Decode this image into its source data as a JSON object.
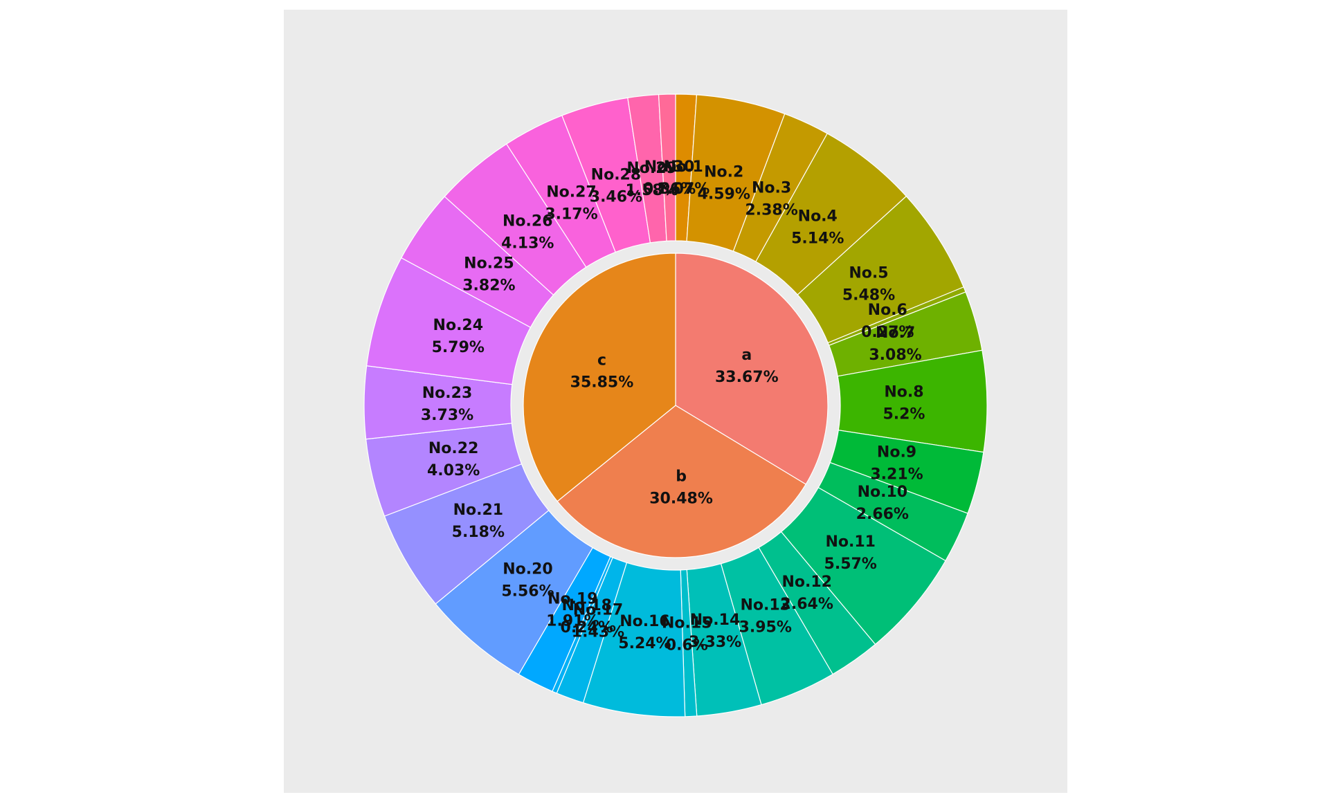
{
  "chart_data": {
    "type": "sunburst",
    "panel_background": "#EBEBEB",
    "segment_border": "#FFFFFF",
    "start": "12 o'clock, clockwise",
    "inner": [
      {
        "label": "a",
        "pct_label": "33.67%",
        "value": 33.67,
        "color": "#F37B70"
      },
      {
        "label": "b",
        "pct_label": "30.48%",
        "value": 30.48,
        "color": "#EF7F4E"
      },
      {
        "label": "c",
        "pct_label": "35.85%",
        "value": 35.85,
        "color": "#E6861A"
      }
    ],
    "outer": [
      {
        "label": "No.1",
        "pct_label": "1.07%",
        "value": 1.07,
        "color": "#DE8C00"
      },
      {
        "label": "No.2",
        "pct_label": "4.59%",
        "value": 4.59,
        "color": "#D39200"
      },
      {
        "label": "No.3",
        "pct_label": "2.38%",
        "value": 2.38,
        "color": "#C49A00"
      },
      {
        "label": "No.4",
        "pct_label": "5.14%",
        "value": 5.14,
        "color": "#B4A000"
      },
      {
        "label": "No.5",
        "pct_label": "5.48%",
        "value": 5.48,
        "color": "#A2A600"
      },
      {
        "label": "No.6",
        "pct_label": "0.27%",
        "value": 0.27,
        "color": "#8FAA00"
      },
      {
        "label": "No.7",
        "pct_label": "3.08%",
        "value": 3.08,
        "color": "#6EB100"
      },
      {
        "label": "No.8",
        "pct_label": "5.2%",
        "value": 5.2,
        "color": "#3CB500"
      },
      {
        "label": "No.9",
        "pct_label": "3.21%",
        "value": 3.21,
        "color": "#00BA38"
      },
      {
        "label": "No.10",
        "pct_label": "2.66%",
        "value": 2.66,
        "color": "#00BD5C"
      },
      {
        "label": "No.11",
        "pct_label": "5.57%",
        "value": 5.57,
        "color": "#00BF77"
      },
      {
        "label": "No.12",
        "pct_label": "2.64%",
        "value": 2.64,
        "color": "#00C08E"
      },
      {
        "label": "No.13",
        "pct_label": "3.95%",
        "value": 3.95,
        "color": "#00C1A3"
      },
      {
        "label": "No.14",
        "pct_label": "3.33%",
        "value": 3.33,
        "color": "#00C0B8"
      },
      {
        "label": "No.15",
        "pct_label": "0.6%",
        "value": 0.6,
        "color": "#00BECB"
      },
      {
        "label": "No.16",
        "pct_label": "5.24%",
        "value": 5.24,
        "color": "#00BBDC"
      },
      {
        "label": "No.17",
        "pct_label": "1.43%",
        "value": 1.43,
        "color": "#00B5EA"
      },
      {
        "label": "No.18",
        "pct_label": "0.24%",
        "value": 0.24,
        "color": "#00B0F6"
      },
      {
        "label": "No.19",
        "pct_label": "1.91%",
        "value": 1.91,
        "color": "#00A8FF"
      },
      {
        "label": "No.20",
        "pct_label": "5.56%",
        "value": 5.56,
        "color": "#619CFF"
      },
      {
        "label": "No.21",
        "pct_label": "5.18%",
        "value": 5.18,
        "color": "#9590FF"
      },
      {
        "label": "No.22",
        "pct_label": "4.03%",
        "value": 4.03,
        "color": "#B385FF"
      },
      {
        "label": "No.23",
        "pct_label": "3.73%",
        "value": 3.73,
        "color": "#C77CFF"
      },
      {
        "label": "No.24",
        "pct_label": "5.79%",
        "value": 5.79,
        "color": "#DB72FB"
      },
      {
        "label": "No.25",
        "pct_label": "3.82%",
        "value": 3.82,
        "color": "#E76BF3"
      },
      {
        "label": "No.26",
        "pct_label": "4.13%",
        "value": 4.13,
        "color": "#F166E8"
      },
      {
        "label": "No.27",
        "pct_label": "3.17%",
        "value": 3.17,
        "color": "#F962DD"
      },
      {
        "label": "No.28",
        "pct_label": "3.46%",
        "value": 3.46,
        "color": "#FF61CC"
      },
      {
        "label": "No.29",
        "pct_label": "1.58%",
        "value": 1.58,
        "color": "#FF65AC"
      },
      {
        "label": "No.30",
        "pct_label": "0.86%",
        "value": 0.86,
        "color": "#FF6A98"
      }
    ]
  }
}
